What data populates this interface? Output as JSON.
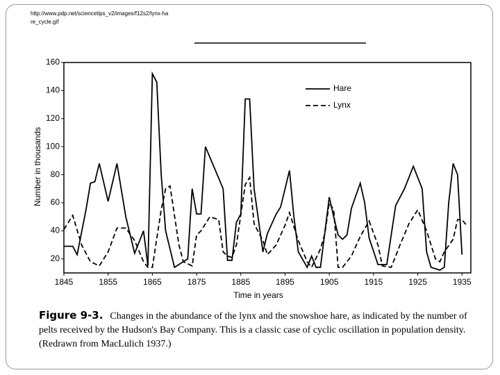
{
  "source_url": "http://www.pdp.net/sciencetips_v2/images/f12s2/lynx-hare_cycle.gif",
  "chart_data": {
    "type": "line",
    "x": [],
    "series": [
      {
        "name": "Hare",
        "color": "#000000",
        "dashed": false,
        "x": [
          1845,
          1847,
          1848,
          1850,
          1851,
          1852,
          1853,
          1855,
          1857,
          1859,
          1861,
          1863,
          1864,
          1865,
          1866,
          1867,
          1868,
          1870,
          1872,
          1873,
          1874,
          1875,
          1876,
          1877,
          1879,
          1881,
          1882,
          1883,
          1884,
          1885,
          1886,
          1887,
          1888,
          1890,
          1891,
          1893,
          1894,
          1896,
          1897,
          1898,
          1900,
          1901,
          1902,
          1903,
          1905,
          1906,
          1907,
          1908,
          1909,
          1910,
          1912,
          1913,
          1914,
          1916,
          1918,
          1920,
          1922,
          1924,
          1926,
          1927,
          1928,
          1930,
          1931,
          1932,
          1933,
          1934,
          1935
        ],
        "values": [
          29,
          29,
          23,
          55,
          74,
          75,
          88,
          61,
          88,
          50,
          24,
          40,
          15,
          152,
          146,
          80,
          40,
          14,
          18,
          20,
          70,
          52,
          52,
          100,
          85,
          70,
          19,
          19,
          46,
          52,
          134,
          134,
          70,
          25,
          38,
          52,
          57,
          83,
          50,
          25,
          14,
          22,
          14,
          14,
          64,
          50,
          37,
          34,
          37,
          56,
          74,
          60,
          35,
          16,
          16,
          58,
          70,
          86,
          70,
          25,
          14,
          12,
          14,
          60,
          88,
          80,
          23
        ]
      },
      {
        "name": "Lynx",
        "color": "#000000",
        "dashed": true,
        "x": [
          1845,
          1847,
          1849,
          1851,
          1853,
          1855,
          1857,
          1859,
          1861,
          1863,
          1864,
          1865,
          1867,
          1868,
          1869,
          1871,
          1872,
          1874,
          1875,
          1876,
          1878,
          1880,
          1881,
          1882,
          1883,
          1884,
          1886,
          1887,
          1888,
          1890,
          1891,
          1893,
          1895,
          1896,
          1898,
          1900,
          1901,
          1903,
          1904,
          1905,
          1906,
          1907,
          1908,
          1910,
          1912,
          1914,
          1916,
          1917,
          1919,
          1921,
          1923,
          1925,
          1927,
          1929,
          1930,
          1931,
          1933,
          1934,
          1935,
          1936
        ],
        "values": [
          41,
          51,
          30,
          18,
          15,
          25,
          42,
          42,
          33,
          18,
          14,
          14,
          55,
          70,
          72,
          30,
          18,
          15,
          37,
          40,
          50,
          48,
          25,
          22,
          21,
          30,
          73,
          78,
          45,
          33,
          23,
          30,
          44,
          53,
          33,
          18,
          14,
          27,
          38,
          60,
          55,
          14,
          14,
          22,
          36,
          47,
          30,
          15,
          14,
          30,
          45,
          55,
          40,
          20,
          18,
          25,
          34,
          48,
          48,
          44
        ]
      }
    ],
    "xlim": [
      1845,
      1937
    ],
    "xticks": [
      1845,
      1855,
      1865,
      1875,
      1885,
      1895,
      1905,
      1915,
      1925,
      1935
    ],
    "ylim": [
      10,
      160
    ],
    "yticks": [
      20,
      40,
      60,
      80,
      100,
      120,
      140,
      160
    ],
    "x_label": "Time in years",
    "y_label": "Number in thousands",
    "legend": "upper right",
    "caption_label": "Figure 9-3.",
    "caption_text": "Changes in the abundance of the lynx and the snowshoe hare, as indicated by the number of pelts received by the Hudson's Bay Company. This is a classic case of cyclic oscillation in population density. (Redrawn from MacLulich 1937.)"
  }
}
